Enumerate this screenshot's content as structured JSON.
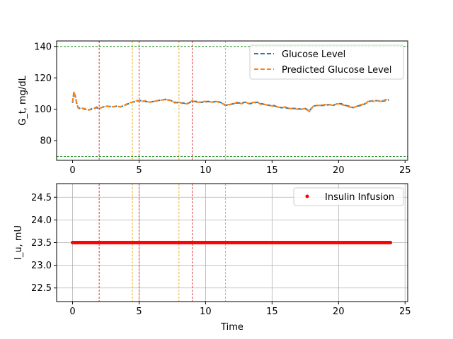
{
  "chart_data": [
    {
      "type": "line",
      "ylabel": "G_t, mg/dL",
      "xlim": [
        -1.2,
        25.2
      ],
      "ylim": [
        67.5,
        143.5
      ],
      "xticks": [
        0,
        5,
        10,
        15,
        20,
        25
      ],
      "yticks": [
        80,
        100,
        120,
        140
      ],
      "grid": false,
      "legend_position": "top-right",
      "hlines": [
        {
          "y": 140,
          "color": "#008000"
        },
        {
          "y": 70,
          "color": "#008000"
        }
      ],
      "vlines": [
        {
          "x": 2.0,
          "color": "#d62728"
        },
        {
          "x": 5.0,
          "color": "#d62728"
        },
        {
          "x": 9.0,
          "color": "#d62728"
        },
        {
          "x": 4.5,
          "color": "#e6a817"
        },
        {
          "x": 8.0,
          "color": "#e6a817"
        },
        {
          "x": 11.5,
          "color": "#e6a817"
        }
      ],
      "x": [
        0.0,
        0.1,
        0.2,
        0.3,
        0.4,
        0.5,
        0.7,
        0.9,
        1.2,
        1.5,
        1.8,
        2.0,
        2.3,
        2.6,
        3.0,
        3.3,
        3.6,
        3.9,
        4.2,
        4.5,
        4.8,
        5.0,
        5.2,
        5.5,
        5.8,
        6.1,
        6.4,
        6.8,
        7.1,
        7.4,
        7.7,
        8.0,
        8.3,
        8.6,
        9.0,
        9.3,
        9.6,
        9.9,
        10.2,
        10.5,
        10.8,
        11.1,
        11.5,
        11.8,
        12.1,
        12.4,
        12.7,
        13.0,
        13.3,
        13.6,
        13.9,
        14.2,
        14.5,
        14.8,
        15.1,
        15.4,
        15.7,
        16.0,
        16.3,
        16.6,
        16.9,
        17.2,
        17.5,
        17.8,
        18.1,
        18.4,
        18.7,
        19.0,
        19.3,
        19.6,
        19.9,
        20.2,
        20.5,
        20.8,
        21.1,
        21.4,
        21.7,
        22.0,
        22.3,
        22.6,
        22.9,
        23.2,
        23.5,
        23.8
      ],
      "series": [
        {
          "name": "Glucose Level",
          "color": "#1f77b4",
          "values": [
            104.0,
            111.0,
            108.5,
            104.0,
            101.5,
            100.5,
            101.0,
            100.0,
            99.5,
            100.5,
            101.0,
            100.5,
            101.5,
            102.0,
            101.5,
            102.0,
            101.5,
            102.5,
            103.5,
            104.5,
            105.0,
            105.5,
            105.5,
            105.0,
            104.5,
            105.0,
            105.5,
            106.0,
            106.5,
            105.5,
            104.5,
            104.0,
            104.0,
            103.5,
            105.0,
            105.0,
            104.5,
            104.5,
            105.0,
            104.5,
            105.0,
            104.5,
            102.5,
            103.0,
            103.5,
            104.0,
            104.0,
            104.5,
            103.5,
            104.0,
            104.5,
            103.5,
            103.0,
            102.5,
            102.5,
            101.5,
            101.0,
            101.0,
            100.5,
            100.5,
            100.5,
            100.0,
            100.5,
            99.0,
            102.0,
            102.5,
            102.5,
            102.5,
            103.0,
            102.5,
            103.5,
            103.5,
            102.5,
            102.0,
            101.0,
            102.0,
            102.5,
            103.5,
            105.0,
            105.5,
            105.5,
            105.0,
            105.5,
            106.0
          ]
        },
        {
          "name": "Predicted Glucose Level",
          "color": "#ff7f0e",
          "values": [
            104.5,
            111.5,
            108.0,
            104.5,
            101.0,
            101.0,
            100.5,
            100.5,
            99.5,
            100.0,
            101.5,
            100.5,
            101.5,
            102.0,
            101.5,
            102.0,
            101.5,
            102.5,
            104.0,
            104.5,
            105.5,
            105.5,
            105.0,
            105.5,
            104.5,
            105.0,
            105.5,
            106.0,
            106.0,
            105.5,
            104.0,
            104.5,
            103.5,
            103.5,
            105.5,
            104.5,
            104.5,
            105.0,
            105.0,
            104.5,
            105.0,
            104.0,
            103.0,
            103.0,
            103.5,
            104.5,
            103.5,
            104.5,
            103.5,
            104.5,
            104.5,
            103.0,
            103.0,
            102.5,
            102.0,
            101.5,
            101.0,
            101.5,
            100.5,
            100.5,
            100.0,
            100.0,
            100.5,
            98.5,
            102.0,
            102.5,
            102.5,
            103.0,
            103.0,
            102.5,
            103.5,
            103.0,
            102.5,
            101.5,
            101.0,
            102.0,
            103.0,
            103.5,
            105.5,
            105.0,
            105.5,
            105.0,
            106.0,
            106.5
          ]
        }
      ]
    },
    {
      "type": "scatter",
      "xlabel": "Time",
      "ylabel": "I_u, mU",
      "xlim": [
        -1.2,
        25.2
      ],
      "ylim": [
        22.2,
        24.8
      ],
      "xticks": [
        0,
        5,
        10,
        15,
        20,
        25
      ],
      "yticks": [
        22.5,
        23.0,
        23.5,
        24.0,
        24.5
      ],
      "grid": true,
      "legend_position": "top-right",
      "vlines": [
        {
          "x": 2.0,
          "color": "#d62728"
        },
        {
          "x": 5.0,
          "color": "#d62728"
        },
        {
          "x": 9.0,
          "color": "#d62728"
        },
        {
          "x": 4.5,
          "color": "#e6a817"
        },
        {
          "x": 8.0,
          "color": "#e6a817"
        },
        {
          "x": 11.5,
          "color": "#e6a817"
        }
      ],
      "series": [
        {
          "name": "Insulin Infusion",
          "color": "#ff0000",
          "x_start": 0.0,
          "x_end": 23.9,
          "x_step": 0.1,
          "value": 23.5
        }
      ]
    }
  ]
}
